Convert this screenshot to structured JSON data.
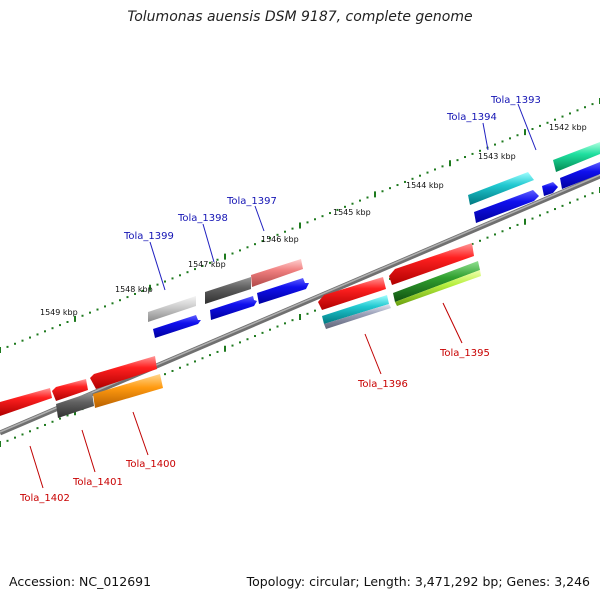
{
  "title": "Tolumonas auensis DSM 9187, complete genome",
  "footer": {
    "accession": "Accession: NC_012691",
    "info": "Topology: circular; Length: 3,471,292 bp; Genes: 3,246"
  },
  "scale_labels": [
    "1549 kbp",
    "1548 kbp",
    "1547 kbp",
    "1546 kbp",
    "1545 kbp",
    "1544 kbp",
    "1543 kbp",
    "1542 kbp"
  ],
  "gene_labels": {
    "forward": [
      "Tola_1399",
      "Tola_1398",
      "Tola_1397",
      "Tola_1394",
      "Tola_1393"
    ],
    "reverse": [
      "Tola_1402",
      "Tola_1401",
      "Tola_1400",
      "Tola_1396",
      "Tola_1395"
    ]
  },
  "colors": {
    "forward_label": "#1414b4",
    "reverse_label": "#c80000",
    "backbone": "#808080",
    "ticks": "#1e7a1e"
  }
}
